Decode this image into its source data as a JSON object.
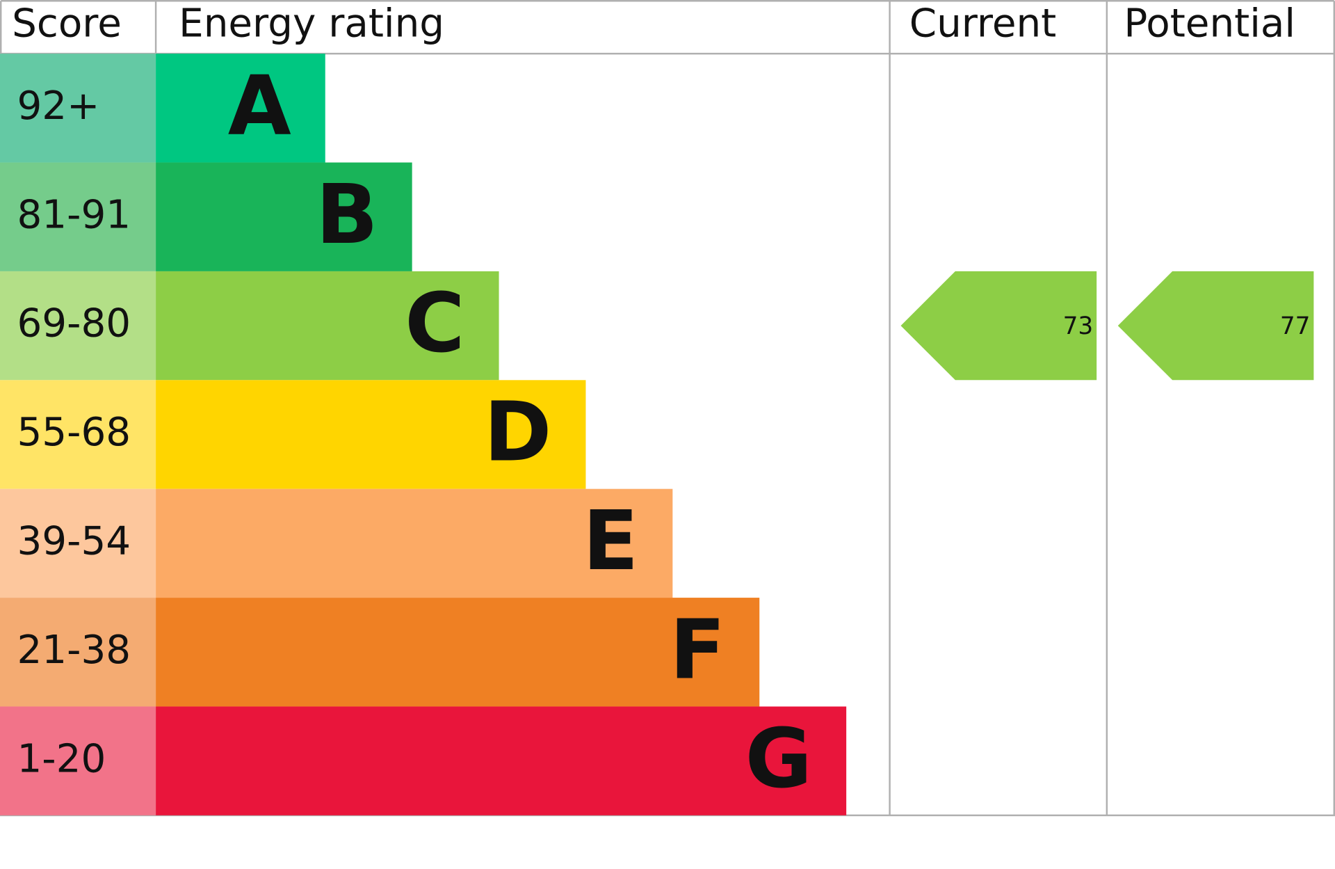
{
  "chart_data": {
    "type": "epc",
    "headers": {
      "score": "Score",
      "rating": "Energy rating",
      "current": "Current",
      "potential": "Potential"
    },
    "bands": [
      {
        "score": "92+",
        "rating": "A",
        "color": "#00c781",
        "score_color": "#64c9a4"
      },
      {
        "score": "81-91",
        "rating": "B",
        "color": "#19b459",
        "score_color": "#75cc8b"
      },
      {
        "score": "69-80",
        "rating": "C",
        "color": "#8dce46",
        "score_color": "#b3df87"
      },
      {
        "score": "55-68",
        "rating": "D",
        "color": "#ffd500",
        "score_color": "#ffe466"
      },
      {
        "score": "39-54",
        "rating": "E",
        "color": "#fcaa65",
        "score_color": "#fdc79d"
      },
      {
        "score": "21-38",
        "rating": "F",
        "color": "#ef8023",
        "score_color": "#f4ab72"
      },
      {
        "score": "1-20",
        "rating": "G",
        "color": "#e9153b",
        "score_color": "#f27389"
      }
    ],
    "current": 73,
    "potential": 77
  }
}
